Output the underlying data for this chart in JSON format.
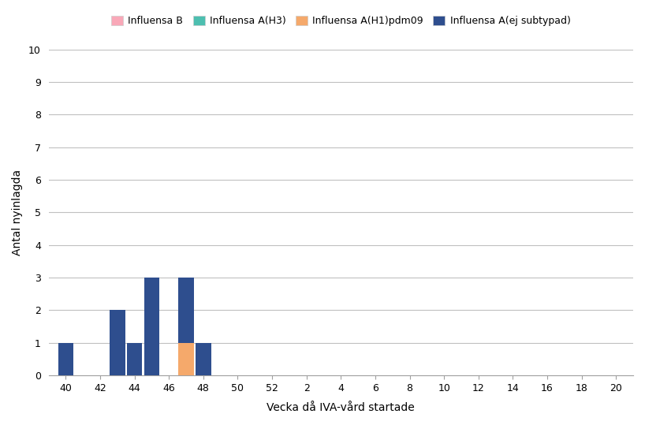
{
  "ylabel": "Antal nyinlagda",
  "xlabel": "Vecka då IVA-vård startade",
  "ylim": [
    0,
    10
  ],
  "yticks": [
    0,
    1,
    2,
    3,
    4,
    5,
    6,
    7,
    8,
    9,
    10
  ],
  "xtick_labels": [
    "40",
    "42",
    "44",
    "46",
    "48",
    "50",
    "52",
    "2",
    "4",
    "6",
    "8",
    "10",
    "12",
    "14",
    "16",
    "18",
    "20"
  ],
  "xtick_week_values": [
    40,
    42,
    44,
    46,
    48,
    50,
    52,
    54,
    56,
    58,
    60,
    62,
    64,
    66,
    68,
    70,
    72
  ],
  "colors": {
    "influensa_B": "#f9a8b8",
    "influensa_A_H3": "#4dbfb0",
    "influensa_A_H1pdm09": "#f5a96b",
    "influensa_A_ej_subtypad": "#2e4e8e"
  },
  "legend_labels": [
    "Influensa B",
    "Influensa A(H3)",
    "Influensa A(H1)pdm09",
    "Influensa A(ej subtypad)"
  ],
  "stacked_data": {
    "weeks": [
      40,
      42,
      43,
      44,
      45,
      46,
      47,
      48
    ],
    "influensa_B": [
      0,
      0,
      0,
      0,
      0,
      0,
      0,
      0
    ],
    "influensa_A_H3": [
      0,
      0,
      0,
      0,
      0,
      0,
      0,
      0
    ],
    "influensa_A_H1pdm09": [
      0,
      0,
      0,
      0,
      0,
      0,
      1,
      0
    ],
    "influensa_A_ej_subtypad": [
      1,
      0,
      2,
      1,
      3,
      0,
      2,
      1
    ]
  },
  "background_color": "#ffffff",
  "grid_color": "#c0c0c0"
}
